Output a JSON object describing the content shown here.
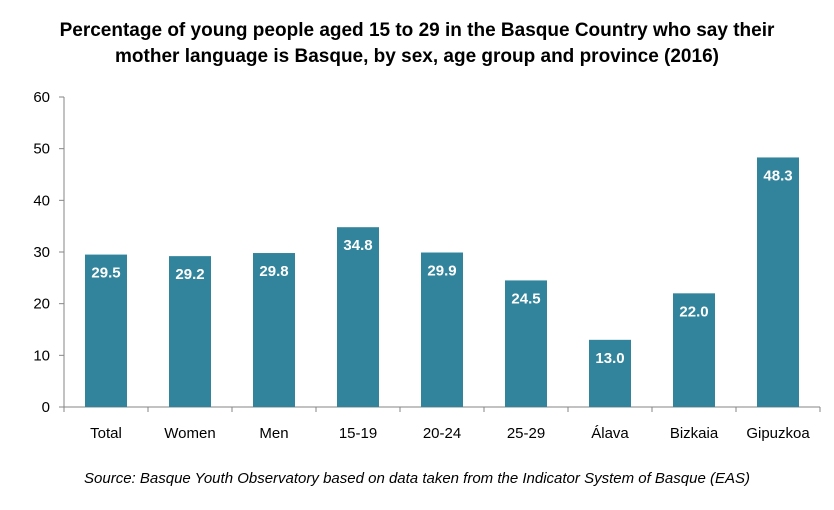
{
  "chart_data": {
    "type": "bar",
    "title_lines": [
      "Percentage of young people aged 15 to 29 in the Basque Country who say their",
      "mother language is Basque, by sex, age group and province (2016)"
    ],
    "categories": [
      "Total",
      "Women",
      "Men",
      "15-19",
      "20-24",
      "25-29",
      "Álava",
      "Bizkaia",
      "Gipuzkoa"
    ],
    "values": [
      29.5,
      29.2,
      29.8,
      34.8,
      29.9,
      24.5,
      13.0,
      22.0,
      48.3
    ],
    "data_labels": [
      "29.5",
      "29.2",
      "29.8",
      "34.8",
      "29.9",
      "24.5",
      "13.0",
      "22.0",
      "48.3"
    ],
    "ylim": [
      0,
      60
    ],
    "yticks": [
      0,
      10,
      20,
      30,
      40,
      50,
      60
    ],
    "grid": false,
    "legend": "none",
    "source": "Source: Basque Youth Observatory based on data taken from the Indicator System of Basque (EAS)",
    "colors": {
      "bar": "#31849B",
      "label": "#ffffff",
      "axis": "#868686"
    }
  }
}
